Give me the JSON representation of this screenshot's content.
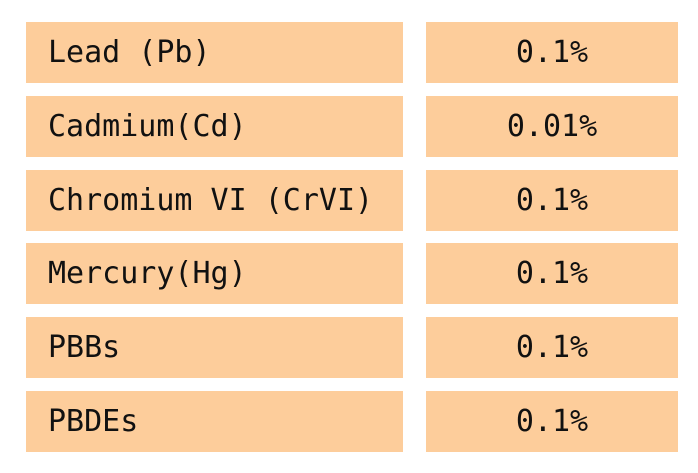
{
  "table": {
    "colors": {
      "cell_background": "#fdcd9b",
      "text": "#111111",
      "page_background": "#ffffff"
    },
    "rows": [
      {
        "substance": "Lead (Pb)",
        "limit": "0.1%"
      },
      {
        "substance": "Cadmium(Cd)",
        "limit": "0.01%"
      },
      {
        "substance": "Chromium VI (CrVI)",
        "limit": "0.1%"
      },
      {
        "substance": "Mercury(Hg)",
        "limit": "0.1%"
      },
      {
        "substance": "PBBs",
        "limit": "0.1%"
      },
      {
        "substance": "PBDEs",
        "limit": "0.1%"
      }
    ]
  }
}
